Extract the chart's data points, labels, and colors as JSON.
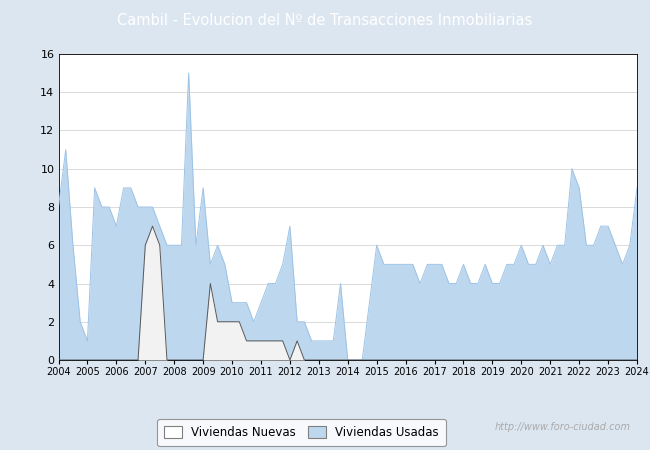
{
  "title": "Cambil - Evolucion del Nº de Transacciones Inmobiliarias",
  "title_bg_color": "#4472c4",
  "title_text_color": "#ffffff",
  "plot_bg_color": "#ffffff",
  "fig_bg_color": "#dce6f1",
  "ylim": [
    0,
    16
  ],
  "yticks": [
    0,
    2,
    4,
    6,
    8,
    10,
    12,
    14,
    16
  ],
  "watermark": "http://www.foro-ciudad.com",
  "legend_labels": [
    "Viviendas Nuevas",
    "Viviendas Usadas"
  ],
  "legend_facecolors": [
    "#ffffff",
    "#bdd7ee"
  ],
  "legend_edge_color": "#7f7f7f",
  "grid_color": "#cccccc",
  "nuevas_line_color": "#595959",
  "usadas_line_color": "#9dc3e6",
  "usadas_fill": "#bdd7ee",
  "nuevas_fill": "#f2f2f2",
  "x_labels": [
    "2004",
    "2005",
    "2006",
    "2007",
    "2008",
    "2009",
    "2010",
    "2011",
    "2012",
    "2013",
    "2014",
    "2015",
    "2016",
    "2017",
    "2018",
    "2019",
    "2020",
    "2021",
    "2022",
    "2023",
    "2024"
  ],
  "quarters_per_year": 4,
  "viviendas_usadas": [
    8,
    11,
    6,
    2,
    1,
    9,
    8,
    8,
    7,
    9,
    9,
    8,
    8,
    8,
    7,
    6,
    6,
    6,
    15,
    6,
    9,
    5,
    6,
    5,
    3,
    3,
    3,
    2,
    3,
    4,
    4,
    5,
    7,
    2,
    2,
    1,
    1,
    1,
    1,
    4,
    0,
    0,
    0,
    3,
    6,
    5,
    5,
    5,
    5,
    5,
    4,
    5,
    5,
    5,
    4,
    4,
    5,
    4,
    4,
    5,
    4,
    4,
    5,
    5,
    6,
    5,
    5,
    6,
    5,
    6,
    6,
    10,
    9,
    6,
    6,
    7,
    7,
    6,
    5,
    6,
    9
  ],
  "viviendas_nuevas": [
    0,
    0,
    0,
    0,
    0,
    0,
    0,
    0,
    0,
    0,
    0,
    0,
    6,
    7,
    6,
    0,
    0,
    0,
    0,
    0,
    0,
    4,
    2,
    2,
    2,
    2,
    1,
    1,
    1,
    1,
    1,
    1,
    0,
    1,
    0,
    0,
    0,
    0,
    0,
    0,
    0,
    0,
    0,
    0,
    0,
    0,
    0,
    0,
    0,
    0,
    0,
    0,
    0,
    0,
    0,
    0,
    0,
    0,
    0,
    0,
    0,
    0,
    0,
    0,
    0,
    0,
    0,
    0,
    0,
    0,
    0,
    0,
    0,
    0,
    0,
    0,
    0,
    0,
    0,
    0,
    0
  ]
}
